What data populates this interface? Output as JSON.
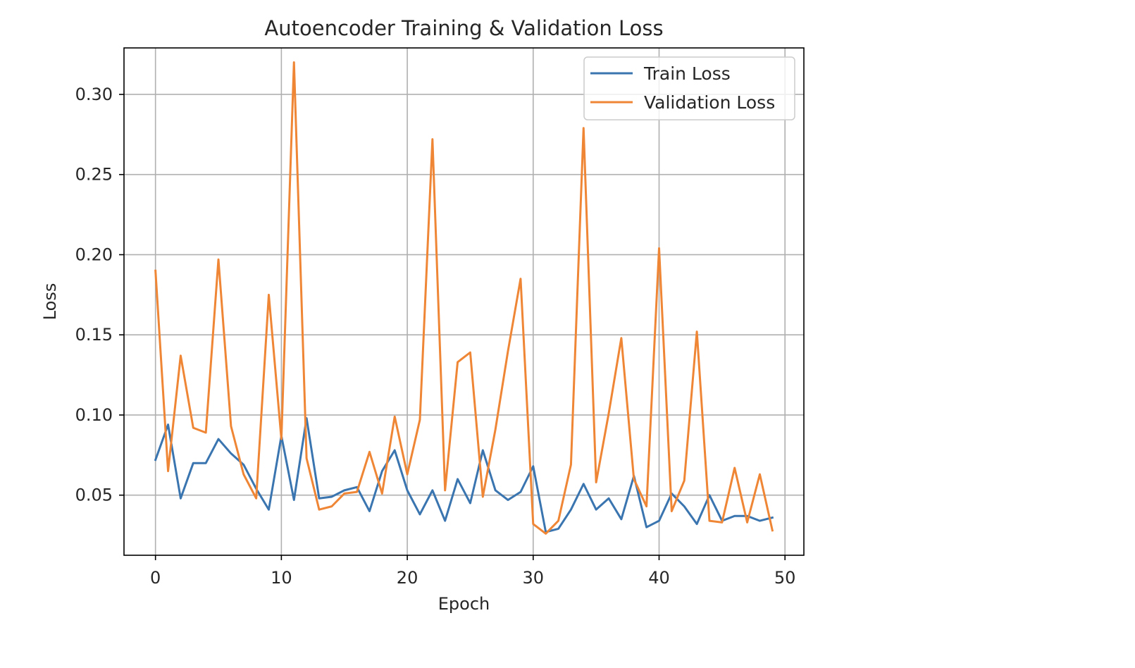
{
  "colors": {
    "train": "#3a75b0",
    "validation": "#ef8636",
    "grid": "#b0b0b0",
    "axis": "#000000"
  },
  "chart_data": {
    "type": "line",
    "title": "Autoencoder Training & Validation Loss",
    "xlabel": "Epoch",
    "ylabel": "Loss",
    "xlim": [
      -2.5,
      51.5
    ],
    "ylim": [
      0.0125,
      0.329
    ],
    "xticks": [
      0,
      10,
      20,
      30,
      40,
      50
    ],
    "xtick_labels": [
      "0",
      "10",
      "20",
      "30",
      "40",
      "50"
    ],
    "yticks": [
      0.05,
      0.1,
      0.15,
      0.2,
      0.25,
      0.3
    ],
    "ytick_labels": [
      "0.05",
      "0.10",
      "0.15",
      "0.20",
      "0.25",
      "0.30"
    ],
    "grid": true,
    "legend_position": "upper right",
    "x": [
      0,
      1,
      2,
      3,
      4,
      5,
      6,
      7,
      8,
      9,
      10,
      11,
      12,
      13,
      14,
      15,
      16,
      17,
      18,
      19,
      20,
      21,
      22,
      23,
      24,
      25,
      26,
      27,
      28,
      29,
      30,
      31,
      32,
      33,
      34,
      35,
      36,
      37,
      38,
      39,
      40,
      41,
      42,
      43,
      44,
      45,
      46,
      47,
      48,
      49
    ],
    "series": [
      {
        "name": "Train Loss",
        "color_key": "train",
        "values": [
          0.072,
          0.094,
          0.048,
          0.07,
          0.07,
          0.085,
          0.076,
          0.069,
          0.054,
          0.041,
          0.087,
          0.047,
          0.098,
          0.048,
          0.049,
          0.053,
          0.055,
          0.04,
          0.065,
          0.078,
          0.053,
          0.038,
          0.053,
          0.034,
          0.06,
          0.045,
          0.078,
          0.053,
          0.047,
          0.052,
          0.068,
          0.027,
          0.029,
          0.041,
          0.057,
          0.041,
          0.048,
          0.035,
          0.062,
          0.03,
          0.034,
          0.051,
          0.043,
          0.032,
          0.05,
          0.034,
          0.037,
          0.037,
          0.034,
          0.036
        ]
      },
      {
        "name": "Validation Loss",
        "color_key": "validation",
        "values": [
          0.19,
          0.065,
          0.137,
          0.092,
          0.089,
          0.197,
          0.093,
          0.063,
          0.048,
          0.175,
          0.085,
          0.32,
          0.073,
          0.041,
          0.043,
          0.051,
          0.052,
          0.077,
          0.051,
          0.099,
          0.063,
          0.097,
          0.272,
          0.053,
          0.133,
          0.139,
          0.049,
          0.091,
          0.14,
          0.185,
          0.032,
          0.026,
          0.034,
          0.069,
          0.279,
          0.058,
          0.101,
          0.148,
          0.06,
          0.043,
          0.204,
          0.04,
          0.059,
          0.152,
          0.034,
          0.033,
          0.067,
          0.033,
          0.063,
          0.028
        ]
      }
    ]
  }
}
